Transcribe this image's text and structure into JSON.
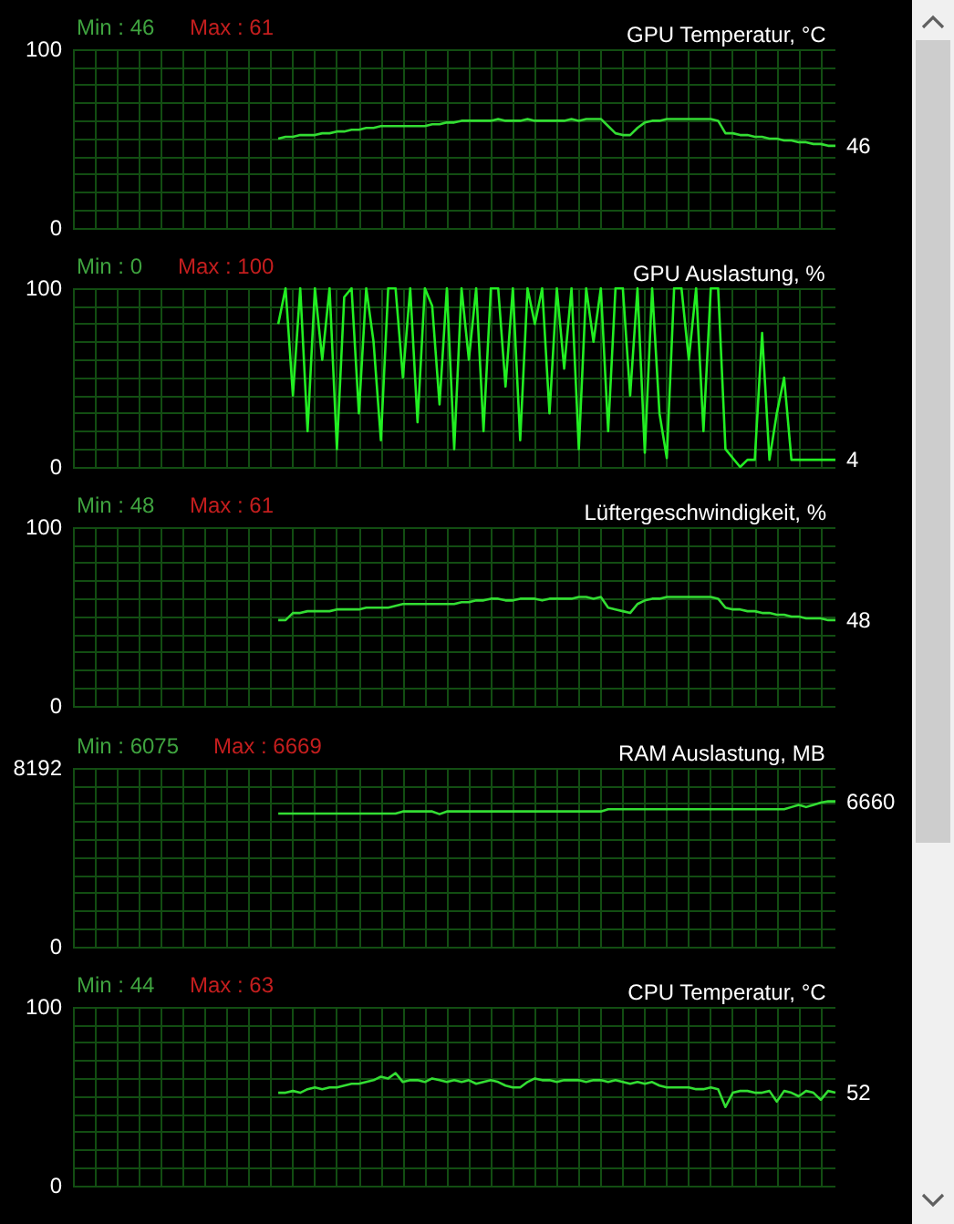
{
  "chart_data": [
    {
      "type": "line",
      "title": "GPU Temperatur, °C",
      "annotations": [
        "Min : 46",
        "Max : 61",
        "46"
      ],
      "categories": [
        null,
        null,
        null,
        null,
        null,
        null,
        null,
        null,
        null,
        null,
        null,
        null,
        null,
        null,
        null,
        null,
        null,
        null,
        null,
        null,
        null,
        null,
        null,
        null,
        null,
        null,
        null,
        null,
        null,
        null,
        null,
        null,
        null,
        null,
        null,
        null,
        null,
        null,
        null,
        null,
        null,
        null,
        null,
        null,
        null,
        null,
        null,
        null,
        null,
        null,
        null,
        null,
        null,
        null,
        null,
        null,
        null,
        null,
        null,
        null,
        null,
        null,
        null,
        null,
        null,
        null,
        null,
        null,
        null,
        null,
        null,
        null,
        null,
        null,
        null,
        null,
        null,
        null,
        null,
        null,
        null,
        null,
        null,
        null,
        null,
        null,
        null,
        null,
        null,
        null,
        null,
        null,
        null,
        null,
        null,
        null,
        null,
        null,
        null,
        null,
        null,
        null,
        null,
        null,
        null
      ],
      "series": [
        {
          "color": "#33dd33",
          "values": [
            null,
            null,
            null,
            null,
            null,
            null,
            null,
            null,
            null,
            null,
            null,
            null,
            null,
            null,
            null,
            null,
            null,
            null,
            null,
            null,
            null,
            null,
            null,
            null,
            null,
            null,
            null,
            null,
            50,
            51,
            51,
            52,
            52,
            52,
            53,
            53,
            54,
            54,
            55,
            55,
            56,
            56,
            57,
            57,
            57,
            57,
            57,
            57,
            57,
            58,
            58,
            59,
            59,
            60,
            60,
            60,
            60,
            60,
            61,
            60,
            60,
            60,
            61,
            60,
            60,
            60,
            60,
            60,
            61,
            60,
            61,
            61,
            61,
            57,
            53,
            52,
            52,
            56,
            59,
            60,
            60,
            61,
            61,
            61,
            61,
            61,
            61,
            61,
            60,
            53,
            53,
            52,
            52,
            51,
            51,
            50,
            50,
            49,
            49,
            48,
            48,
            47,
            47,
            46,
            46
          ]
        }
      ],
      "ylim": [
        0,
        100
      ],
      "yticks": [
        0,
        {
          "value": 10,
          "label": null
        },
        {
          "value": 20,
          "label": null
        },
        {
          "value": 30,
          "label": null
        },
        {
          "value": 40,
          "label": null
        },
        {
          "value": 50,
          "label": null
        },
        {
          "value": 60,
          "label": null
        },
        {
          "value": 70,
          "label": null
        },
        {
          "value": 80,
          "label": null
        },
        {
          "value": 90,
          "label": null
        },
        100
      ],
      "grid": true
    },
    {
      "type": "line",
      "title": "GPU Auslastung, %",
      "annotations": [
        "Min : 0",
        "Max : 100",
        "4"
      ],
      "categories": [
        null,
        null,
        null,
        null,
        null,
        null,
        null,
        null,
        null,
        null,
        null,
        null,
        null,
        null,
        null,
        null,
        null,
        null,
        null,
        null,
        null,
        null,
        null,
        null,
        null,
        null,
        null,
        null,
        null,
        null,
        null,
        null,
        null,
        null,
        null,
        null,
        null,
        null,
        null,
        null,
        null,
        null,
        null,
        null,
        null,
        null,
        null,
        null,
        null,
        null,
        null,
        null,
        null,
        null,
        null,
        null,
        null,
        null,
        null,
        null,
        null,
        null,
        null,
        null,
        null,
        null,
        null,
        null,
        null,
        null,
        null,
        null,
        null,
        null,
        null,
        null,
        null,
        null,
        null,
        null,
        null,
        null,
        null,
        null,
        null,
        null,
        null,
        null,
        null,
        null,
        null,
        null,
        null,
        null,
        null,
        null,
        null,
        null,
        null,
        null,
        null,
        null,
        null,
        null,
        null
      ],
      "series": [
        {
          "color": "#22ee22",
          "values": [
            null,
            null,
            null,
            null,
            null,
            null,
            null,
            null,
            null,
            null,
            null,
            null,
            null,
            null,
            null,
            null,
            null,
            null,
            null,
            null,
            null,
            null,
            null,
            null,
            null,
            null,
            null,
            null,
            80,
            100,
            40,
            100,
            20,
            100,
            60,
            100,
            10,
            95,
            100,
            30,
            100,
            70,
            15,
            100,
            100,
            50,
            100,
            25,
            100,
            90,
            35,
            100,
            10,
            100,
            60,
            100,
            20,
            100,
            100,
            45,
            100,
            15,
            100,
            80,
            100,
            30,
            100,
            55,
            100,
            10,
            100,
            70,
            100,
            20,
            100,
            100,
            40,
            100,
            8,
            100,
            30,
            5,
            100,
            100,
            60,
            100,
            20,
            100,
            100,
            10,
            5,
            0,
            4,
            4,
            75,
            4,
            30,
            50,
            4,
            4,
            4,
            4,
            4,
            4,
            4
          ]
        }
      ],
      "ylim": [
        0,
        100
      ],
      "yticks": [
        0,
        {
          "value": 10,
          "label": null
        },
        {
          "value": 20,
          "label": null
        },
        {
          "value": 30,
          "label": null
        },
        {
          "value": 40,
          "label": null
        },
        {
          "value": 50,
          "label": null
        },
        {
          "value": 60,
          "label": null
        },
        {
          "value": 70,
          "label": null
        },
        {
          "value": 80,
          "label": null
        },
        {
          "value": 90,
          "label": null
        },
        100
      ],
      "grid": true
    },
    {
      "type": "line",
      "title": "Lüftergeschwindigkeit, %",
      "annotations": [
        "Min : 48",
        "Max : 61",
        "48"
      ],
      "categories": [
        null,
        null,
        null,
        null,
        null,
        null,
        null,
        null,
        null,
        null,
        null,
        null,
        null,
        null,
        null,
        null,
        null,
        null,
        null,
        null,
        null,
        null,
        null,
        null,
        null,
        null,
        null,
        null,
        null,
        null,
        null,
        null,
        null,
        null,
        null,
        null,
        null,
        null,
        null,
        null,
        null,
        null,
        null,
        null,
        null,
        null,
        null,
        null,
        null,
        null,
        null,
        null,
        null,
        null,
        null,
        null,
        null,
        null,
        null,
        null,
        null,
        null,
        null,
        null,
        null,
        null,
        null,
        null,
        null,
        null,
        null,
        null,
        null,
        null,
        null,
        null,
        null,
        null,
        null,
        null,
        null,
        null,
        null,
        null,
        null,
        null,
        null,
        null,
        null,
        null,
        null,
        null,
        null,
        null,
        null,
        null,
        null,
        null,
        null,
        null,
        null,
        null,
        null,
        null,
        null
      ],
      "series": [
        {
          "color": "#33dd33",
          "values": [
            null,
            null,
            null,
            null,
            null,
            null,
            null,
            null,
            null,
            null,
            null,
            null,
            null,
            null,
            null,
            null,
            null,
            null,
            null,
            null,
            null,
            null,
            null,
            null,
            null,
            null,
            null,
            null,
            48,
            48,
            52,
            52,
            53,
            53,
            53,
            53,
            54,
            54,
            54,
            54,
            55,
            55,
            55,
            55,
            56,
            57,
            57,
            57,
            57,
            57,
            57,
            57,
            57,
            58,
            58,
            59,
            59,
            60,
            60,
            59,
            59,
            60,
            60,
            60,
            59,
            60,
            60,
            60,
            60,
            61,
            61,
            60,
            61,
            55,
            54,
            53,
            52,
            57,
            59,
            60,
            60,
            61,
            61,
            61,
            61,
            61,
            61,
            61,
            60,
            55,
            54,
            54,
            53,
            53,
            52,
            52,
            51,
            51,
            50,
            50,
            49,
            49,
            49,
            48,
            48
          ]
        }
      ],
      "ylim": [
        0,
        100
      ],
      "yticks": [
        0,
        {
          "value": 10,
          "label": null
        },
        {
          "value": 20,
          "label": null
        },
        {
          "value": 30,
          "label": null
        },
        {
          "value": 40,
          "label": null
        },
        {
          "value": 50,
          "label": null
        },
        {
          "value": 60,
          "label": null
        },
        {
          "value": 70,
          "label": null
        },
        {
          "value": 80,
          "label": null
        },
        {
          "value": 90,
          "label": null
        },
        100
      ],
      "grid": true
    },
    {
      "type": "line",
      "title": "RAM Auslastung, MB",
      "annotations": [
        "Min : 6075",
        "Max : 6669",
        "6660"
      ],
      "categories": [
        null,
        null,
        null,
        null,
        null,
        null,
        null,
        null,
        null,
        null,
        null,
        null,
        null,
        null,
        null,
        null,
        null,
        null,
        null,
        null,
        null,
        null,
        null,
        null,
        null,
        null,
        null,
        null,
        null,
        null,
        null,
        null,
        null,
        null,
        null,
        null,
        null,
        null,
        null,
        null,
        null,
        null,
        null,
        null,
        null,
        null,
        null,
        null,
        null,
        null,
        null,
        null,
        null,
        null,
        null,
        null,
        null,
        null,
        null,
        null,
        null,
        null,
        null,
        null,
        null,
        null,
        null,
        null,
        null,
        null,
        null,
        null,
        null,
        null,
        null,
        null,
        null,
        null,
        null,
        null,
        null,
        null,
        null,
        null,
        null,
        null,
        null,
        null,
        null,
        null,
        null,
        null,
        null,
        null,
        null,
        null,
        null,
        null,
        null,
        null,
        null,
        null,
        null,
        null,
        null
      ],
      "series": [
        {
          "color": "#33dd33",
          "values": [
            null,
            null,
            null,
            null,
            null,
            null,
            null,
            null,
            null,
            null,
            null,
            null,
            null,
            null,
            null,
            null,
            null,
            null,
            null,
            null,
            null,
            null,
            null,
            null,
            null,
            null,
            null,
            null,
            6100,
            6100,
            6100,
            6100,
            6100,
            6100,
            6100,
            6100,
            6100,
            6100,
            6100,
            6100,
            6100,
            6100,
            6100,
            6100,
            6100,
            6200,
            6200,
            6200,
            6200,
            6200,
            6075,
            6200,
            6200,
            6200,
            6200,
            6200,
            6200,
            6200,
            6200,
            6200,
            6200,
            6200,
            6200,
            6200,
            6200,
            6200,
            6200,
            6200,
            6200,
            6200,
            6200,
            6200,
            6200,
            6300,
            6300,
            6300,
            6300,
            6300,
            6300,
            6300,
            6300,
            6300,
            6300,
            6300,
            6300,
            6300,
            6300,
            6300,
            6300,
            6300,
            6300,
            6300,
            6300,
            6300,
            6300,
            6300,
            6300,
            6300,
            6400,
            6500,
            6400,
            6500,
            6600,
            6669,
            6660
          ]
        }
      ],
      "ylim": [
        0,
        8192
      ],
      "yticks": [
        0,
        {
          "value": 819.2,
          "label": null
        },
        {
          "value": 1638.4,
          "label": null
        },
        {
          "value": 2457.6,
          "label": null
        },
        {
          "value": 3276.8,
          "label": null
        },
        {
          "value": 4096,
          "label": null
        },
        {
          "value": 4915.2,
          "label": null
        },
        {
          "value": 5734.4,
          "label": null
        },
        {
          "value": 6553.6,
          "label": null
        },
        {
          "value": 7372.8,
          "label": null
        },
        8192
      ],
      "grid": true
    },
    {
      "type": "line",
      "title": "CPU Temperatur, °C",
      "annotations": [
        "Min : 44",
        "Max : 63",
        "52"
      ],
      "categories": [
        null,
        null,
        null,
        null,
        null,
        null,
        null,
        null,
        null,
        null,
        null,
        null,
        null,
        null,
        null,
        null,
        null,
        null,
        null,
        null,
        null,
        null,
        null,
        null,
        null,
        null,
        null,
        null,
        null,
        null,
        null,
        null,
        null,
        null,
        null,
        null,
        null,
        null,
        null,
        null,
        null,
        null,
        null,
        null,
        null,
        null,
        null,
        null,
        null,
        null,
        null,
        null,
        null,
        null,
        null,
        null,
        null,
        null,
        null,
        null,
        null,
        null,
        null,
        null,
        null,
        null,
        null,
        null,
        null,
        null,
        null,
        null,
        null,
        null,
        null,
        null,
        null,
        null,
        null,
        null,
        null,
        null,
        null,
        null,
        null,
        null,
        null,
        null,
        null,
        null,
        null,
        null,
        null,
        null,
        null,
        null,
        null,
        null,
        null,
        null,
        null,
        null,
        null,
        null,
        null
      ],
      "series": [
        {
          "color": "#33dd33",
          "values": [
            null,
            null,
            null,
            null,
            null,
            null,
            null,
            null,
            null,
            null,
            null,
            null,
            null,
            null,
            null,
            null,
            null,
            null,
            null,
            null,
            null,
            null,
            null,
            null,
            null,
            null,
            null,
            null,
            52,
            52,
            53,
            52,
            54,
            55,
            54,
            55,
            55,
            56,
            57,
            57,
            58,
            59,
            61,
            60,
            63,
            58,
            59,
            59,
            58,
            60,
            59,
            58,
            59,
            58,
            59,
            57,
            58,
            59,
            58,
            56,
            55,
            55,
            58,
            60,
            59,
            59,
            58,
            59,
            59,
            59,
            58,
            59,
            59,
            58,
            59,
            58,
            57,
            58,
            57,
            58,
            56,
            55,
            55,
            55,
            55,
            54,
            54,
            55,
            54,
            44,
            52,
            53,
            53,
            52,
            52,
            53,
            47,
            53,
            52,
            50,
            53,
            52,
            48,
            53,
            52
          ]
        }
      ],
      "ylim": [
        0,
        100
      ],
      "yticks": [
        0,
        {
          "value": 10,
          "label": null
        },
        {
          "value": 20,
          "label": null
        },
        {
          "value": 30,
          "label": null
        },
        {
          "value": 40,
          "label": null
        },
        {
          "value": 50,
          "label": null
        },
        {
          "value": 60,
          "label": null
        },
        {
          "value": 70,
          "label": null
        },
        {
          "value": 80,
          "label": null
        },
        {
          "value": 90,
          "label": null
        },
        100
      ],
      "grid": true
    }
  ]
}
